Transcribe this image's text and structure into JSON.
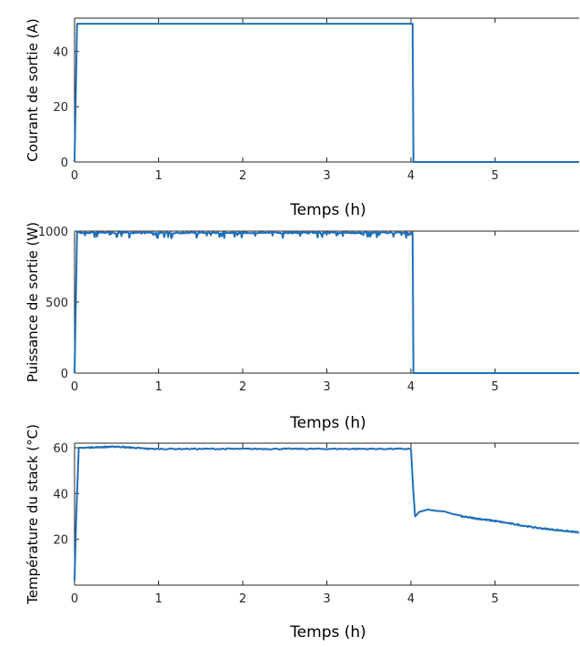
{
  "series_color": "#1f6fba",
  "chart_data": [
    {
      "type": "line",
      "xlabel": "Temps (h)",
      "ylabel": "Courant de sortie (A)",
      "xlim": [
        0,
        6
      ],
      "ylim": [
        0,
        52
      ],
      "xticks": [
        0,
        1,
        2,
        3,
        4,
        5
      ],
      "yticks": [
        0,
        20,
        40
      ],
      "grid": false,
      "series": [
        {
          "x": [
            0,
            0.03,
            0.04,
            4.02,
            4.03,
            6
          ],
          "y": [
            0,
            50,
            50,
            50,
            0,
            0
          ]
        }
      ]
    },
    {
      "type": "line",
      "xlabel": "Temps (h)",
      "ylabel": "Puissance de sortie (W)",
      "xlim": [
        0,
        6
      ],
      "ylim": [
        0,
        1000
      ],
      "xticks": [
        0,
        1,
        2,
        3,
        4,
        5
      ],
      "yticks": [
        0,
        500,
        1000
      ],
      "grid": false,
      "series": [
        {
          "x": [
            0,
            0.03,
            0.05,
            4.0,
            4.02,
            4.03,
            6
          ],
          "y": [
            0,
            990,
            990,
            990,
            990,
            0,
            0
          ],
          "noise_range": [
            950,
            1000
          ]
        }
      ]
    },
    {
      "type": "line",
      "xlabel": "Temps (h)",
      "ylabel": "Température du stack (°C)",
      "xlim": [
        0,
        6
      ],
      "ylim": [
        0,
        62
      ],
      "xticks": [
        0,
        1,
        2,
        3,
        4,
        5
      ],
      "yticks": [
        20,
        40,
        60
      ],
      "grid": false,
      "series": [
        {
          "x": [
            0,
            0.02,
            0.05,
            0.1,
            0.5,
            0.9,
            2,
            3,
            4.0,
            4.03,
            4.05,
            4.1,
            4.2,
            4.4,
            4.6,
            5,
            5.5,
            6
          ],
          "y": [
            2,
            30,
            60,
            60,
            60.5,
            59.5,
            59.5,
            59.5,
            59.5,
            40,
            30,
            32,
            33,
            32,
            30,
            28,
            25,
            23
          ]
        }
      ]
    }
  ]
}
